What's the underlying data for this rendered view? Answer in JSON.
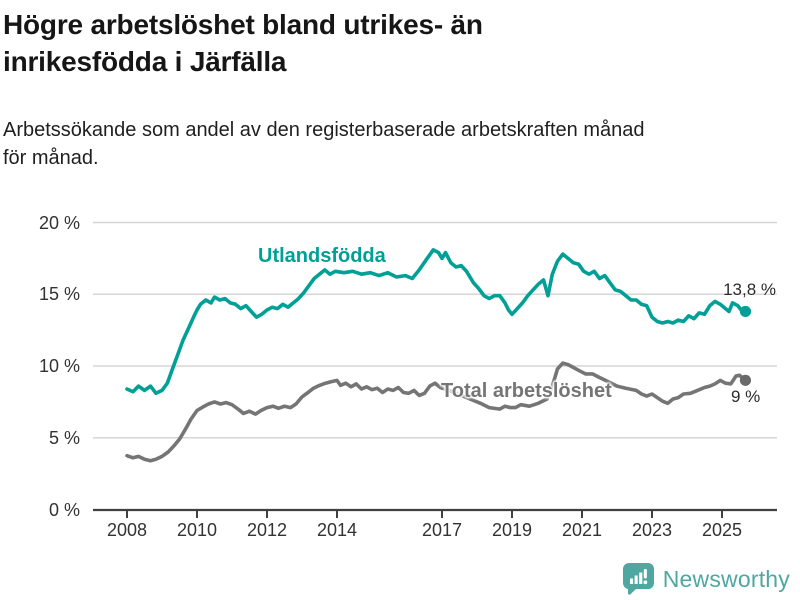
{
  "header": {
    "title": "Högre arbetslöshet bland utrikes- än\ninrikesfödda i Järfälla",
    "subtitle": "Arbetssökande som andel av den registerbaserade arbetskraften månad\nför månad."
  },
  "footer": {
    "brand": "Newsworthy",
    "logo_icon": "newsworthy-speech-bubble-bar-chart-icon"
  },
  "colors": {
    "series_foreign_born": "#00a096",
    "series_total": "#757575",
    "series_total_dot": "#6a6a6a",
    "grid": "#d6d6d6",
    "axis": "#404040",
    "axis_text": "#333333",
    "title_text": "#161616",
    "logo_teal": "#4ea7a0",
    "background": "#ffffff"
  },
  "chart_data": {
    "type": "line",
    "title": "Högre arbetslöshet bland utrikes- än inrikesfödda i Järfälla",
    "subtitle": "Arbetssökande som andel av den registerbaserade arbetskraften månad för månad.",
    "unit": "%",
    "grid": "horizontal",
    "legend_position": "inline-labels",
    "y_axis": {
      "range": [
        0,
        20
      ],
      "ticks": [
        {
          "value": 0,
          "label": "0 %"
        },
        {
          "value": 5,
          "label": "5 %"
        },
        {
          "value": 10,
          "label": "10 %"
        },
        {
          "value": 15,
          "label": "15 %"
        },
        {
          "value": 20,
          "label": "20 %"
        }
      ]
    },
    "x_axis": {
      "range": [
        2008,
        2025.7
      ],
      "ticks": [
        {
          "value": 2008,
          "label": "2008"
        },
        {
          "value": 2010,
          "label": "2010"
        },
        {
          "value": 2012,
          "label": "2012"
        },
        {
          "value": 2014,
          "label": "2014"
        },
        {
          "value": 2017,
          "label": "2017"
        },
        {
          "value": 2019,
          "label": "2019"
        },
        {
          "value": 2021,
          "label": "2021"
        },
        {
          "value": 2023,
          "label": "2023"
        },
        {
          "value": 2025,
          "label": "2025"
        }
      ]
    },
    "series": [
      {
        "name": "Utlandsfödda",
        "color": "#00a096",
        "dot_color": "#00a096",
        "end_label": "13,8 %",
        "end_value": 13.8,
        "points": [
          [
            2008.0,
            8.4
          ],
          [
            2008.17,
            8.2
          ],
          [
            2008.33,
            8.6
          ],
          [
            2008.5,
            8.3
          ],
          [
            2008.67,
            8.6
          ],
          [
            2008.83,
            8.1
          ],
          [
            2009.0,
            8.3
          ],
          [
            2009.15,
            8.8
          ],
          [
            2009.3,
            9.8
          ],
          [
            2009.45,
            10.8
          ],
          [
            2009.6,
            11.8
          ],
          [
            2009.75,
            12.6
          ],
          [
            2009.9,
            13.4
          ],
          [
            2010.0,
            13.9
          ],
          [
            2010.1,
            14.3
          ],
          [
            2010.25,
            14.6
          ],
          [
            2010.4,
            14.4
          ],
          [
            2010.5,
            14.8
          ],
          [
            2010.65,
            14.6
          ],
          [
            2010.8,
            14.7
          ],
          [
            2010.95,
            14.4
          ],
          [
            2011.1,
            14.3
          ],
          [
            2011.25,
            14.0
          ],
          [
            2011.4,
            14.2
          ],
          [
            2011.55,
            13.8
          ],
          [
            2011.7,
            13.4
          ],
          [
            2011.85,
            13.6
          ],
          [
            2012.0,
            13.9
          ],
          [
            2012.15,
            14.1
          ],
          [
            2012.3,
            14.0
          ],
          [
            2012.45,
            14.3
          ],
          [
            2012.6,
            14.1
          ],
          [
            2012.75,
            14.4
          ],
          [
            2012.9,
            14.7
          ],
          [
            2013.05,
            15.1
          ],
          [
            2013.2,
            15.6
          ],
          [
            2013.35,
            16.1
          ],
          [
            2013.5,
            16.4
          ],
          [
            2013.65,
            16.7
          ],
          [
            2013.8,
            16.4
          ],
          [
            2013.95,
            16.6
          ],
          [
            2014.2,
            16.5
          ],
          [
            2014.45,
            16.6
          ],
          [
            2014.7,
            16.4
          ],
          [
            2014.95,
            16.5
          ],
          [
            2015.2,
            16.3
          ],
          [
            2015.45,
            16.5
          ],
          [
            2015.7,
            16.2
          ],
          [
            2015.95,
            16.3
          ],
          [
            2016.15,
            16.1
          ],
          [
            2016.35,
            16.7
          ],
          [
            2016.55,
            17.4
          ],
          [
            2016.75,
            18.1
          ],
          [
            2016.9,
            17.9
          ],
          [
            2017.0,
            17.5
          ],
          [
            2017.1,
            17.9
          ],
          [
            2017.25,
            17.2
          ],
          [
            2017.4,
            16.9
          ],
          [
            2017.55,
            17.0
          ],
          [
            2017.7,
            16.6
          ],
          [
            2017.9,
            15.8
          ],
          [
            2018.05,
            15.4
          ],
          [
            2018.2,
            14.9
          ],
          [
            2018.35,
            14.7
          ],
          [
            2018.5,
            14.9
          ],
          [
            2018.65,
            14.9
          ],
          [
            2018.8,
            14.4
          ],
          [
            2018.9,
            13.9
          ],
          [
            2019.0,
            13.6
          ],
          [
            2019.15,
            14.0
          ],
          [
            2019.3,
            14.4
          ],
          [
            2019.45,
            14.9
          ],
          [
            2019.6,
            15.3
          ],
          [
            2019.75,
            15.7
          ],
          [
            2019.9,
            16.0
          ],
          [
            2020.03,
            14.9
          ],
          [
            2020.15,
            16.4
          ],
          [
            2020.3,
            17.3
          ],
          [
            2020.45,
            17.8
          ],
          [
            2020.6,
            17.5
          ],
          [
            2020.75,
            17.2
          ],
          [
            2020.9,
            17.1
          ],
          [
            2021.05,
            16.6
          ],
          [
            2021.2,
            16.4
          ],
          [
            2021.35,
            16.6
          ],
          [
            2021.5,
            16.1
          ],
          [
            2021.65,
            16.3
          ],
          [
            2021.8,
            15.8
          ],
          [
            2021.95,
            15.3
          ],
          [
            2022.1,
            15.2
          ],
          [
            2022.25,
            14.9
          ],
          [
            2022.4,
            14.6
          ],
          [
            2022.55,
            14.6
          ],
          [
            2022.7,
            14.3
          ],
          [
            2022.85,
            14.2
          ],
          [
            2023.0,
            13.4
          ],
          [
            2023.15,
            13.1
          ],
          [
            2023.3,
            13.0
          ],
          [
            2023.45,
            13.1
          ],
          [
            2023.6,
            13.0
          ],
          [
            2023.75,
            13.2
          ],
          [
            2023.9,
            13.1
          ],
          [
            2024.05,
            13.5
          ],
          [
            2024.2,
            13.3
          ],
          [
            2024.35,
            13.7
          ],
          [
            2024.5,
            13.6
          ],
          [
            2024.65,
            14.2
          ],
          [
            2024.8,
            14.5
          ],
          [
            2024.95,
            14.3
          ],
          [
            2025.1,
            14.0
          ],
          [
            2025.2,
            13.8
          ],
          [
            2025.3,
            14.4
          ],
          [
            2025.45,
            14.2
          ],
          [
            2025.55,
            13.9
          ],
          [
            2025.67,
            13.8
          ]
        ]
      },
      {
        "name": "Total arbetslöshet",
        "color": "#757575",
        "dot_color": "#6a6a6a",
        "end_label": "9 %",
        "end_value": 9.0,
        "points": [
          [
            2008.0,
            3.75
          ],
          [
            2008.17,
            3.6
          ],
          [
            2008.33,
            3.7
          ],
          [
            2008.5,
            3.5
          ],
          [
            2008.67,
            3.4
          ],
          [
            2008.83,
            3.5
          ],
          [
            2009.0,
            3.7
          ],
          [
            2009.17,
            4.0
          ],
          [
            2009.33,
            4.4
          ],
          [
            2009.5,
            4.9
          ],
          [
            2009.67,
            5.6
          ],
          [
            2009.83,
            6.3
          ],
          [
            2010.0,
            6.9
          ],
          [
            2010.17,
            7.15
          ],
          [
            2010.33,
            7.35
          ],
          [
            2010.5,
            7.5
          ],
          [
            2010.67,
            7.35
          ],
          [
            2010.83,
            7.45
          ],
          [
            2011.0,
            7.3
          ],
          [
            2011.17,
            7.0
          ],
          [
            2011.33,
            6.7
          ],
          [
            2011.5,
            6.85
          ],
          [
            2011.67,
            6.65
          ],
          [
            2011.83,
            6.9
          ],
          [
            2012.0,
            7.1
          ],
          [
            2012.17,
            7.2
          ],
          [
            2012.33,
            7.05
          ],
          [
            2012.5,
            7.2
          ],
          [
            2012.67,
            7.1
          ],
          [
            2012.83,
            7.35
          ],
          [
            2013.0,
            7.85
          ],
          [
            2013.17,
            8.15
          ],
          [
            2013.33,
            8.45
          ],
          [
            2013.5,
            8.65
          ],
          [
            2013.67,
            8.8
          ],
          [
            2013.83,
            8.9
          ],
          [
            2014.0,
            9.0
          ],
          [
            2014.1,
            8.65
          ],
          [
            2014.25,
            8.8
          ],
          [
            2014.4,
            8.55
          ],
          [
            2014.55,
            8.75
          ],
          [
            2014.7,
            8.4
          ],
          [
            2014.85,
            8.55
          ],
          [
            2015.0,
            8.35
          ],
          [
            2015.15,
            8.45
          ],
          [
            2015.3,
            8.15
          ],
          [
            2015.45,
            8.4
          ],
          [
            2015.6,
            8.3
          ],
          [
            2015.75,
            8.5
          ],
          [
            2015.9,
            8.15
          ],
          [
            2016.05,
            8.1
          ],
          [
            2016.2,
            8.3
          ],
          [
            2016.35,
            7.95
          ],
          [
            2016.5,
            8.1
          ],
          [
            2016.65,
            8.6
          ],
          [
            2016.8,
            8.8
          ],
          [
            2016.95,
            8.5
          ],
          [
            2017.2,
            8.3
          ],
          [
            2017.5,
            8.0
          ],
          [
            2017.8,
            7.7
          ],
          [
            2018.1,
            7.4
          ],
          [
            2018.35,
            7.1
          ],
          [
            2018.65,
            7.0
          ],
          [
            2018.8,
            7.2
          ],
          [
            2018.95,
            7.1
          ],
          [
            2019.1,
            7.1
          ],
          [
            2019.25,
            7.3
          ],
          [
            2019.5,
            7.2
          ],
          [
            2019.75,
            7.4
          ],
          [
            2020.0,
            7.7
          ],
          [
            2020.15,
            8.6
          ],
          [
            2020.3,
            9.8
          ],
          [
            2020.45,
            10.2
          ],
          [
            2020.6,
            10.1
          ],
          [
            2020.75,
            9.9
          ],
          [
            2020.9,
            9.7
          ],
          [
            2021.1,
            9.45
          ],
          [
            2021.3,
            9.45
          ],
          [
            2021.5,
            9.2
          ],
          [
            2021.75,
            8.9
          ],
          [
            2022.0,
            8.6
          ],
          [
            2022.25,
            8.45
          ],
          [
            2022.55,
            8.3
          ],
          [
            2022.7,
            8.05
          ],
          [
            2022.85,
            7.9
          ],
          [
            2023.0,
            8.05
          ],
          [
            2023.15,
            7.8
          ],
          [
            2023.3,
            7.55
          ],
          [
            2023.45,
            7.4
          ],
          [
            2023.6,
            7.7
          ],
          [
            2023.75,
            7.8
          ],
          [
            2023.9,
            8.05
          ],
          [
            2024.1,
            8.1
          ],
          [
            2024.3,
            8.3
          ],
          [
            2024.5,
            8.5
          ],
          [
            2024.65,
            8.6
          ],
          [
            2024.8,
            8.75
          ],
          [
            2024.95,
            9.0
          ],
          [
            2025.1,
            8.8
          ],
          [
            2025.25,
            8.75
          ],
          [
            2025.4,
            9.3
          ],
          [
            2025.5,
            9.35
          ],
          [
            2025.67,
            9.0
          ]
        ]
      }
    ]
  }
}
